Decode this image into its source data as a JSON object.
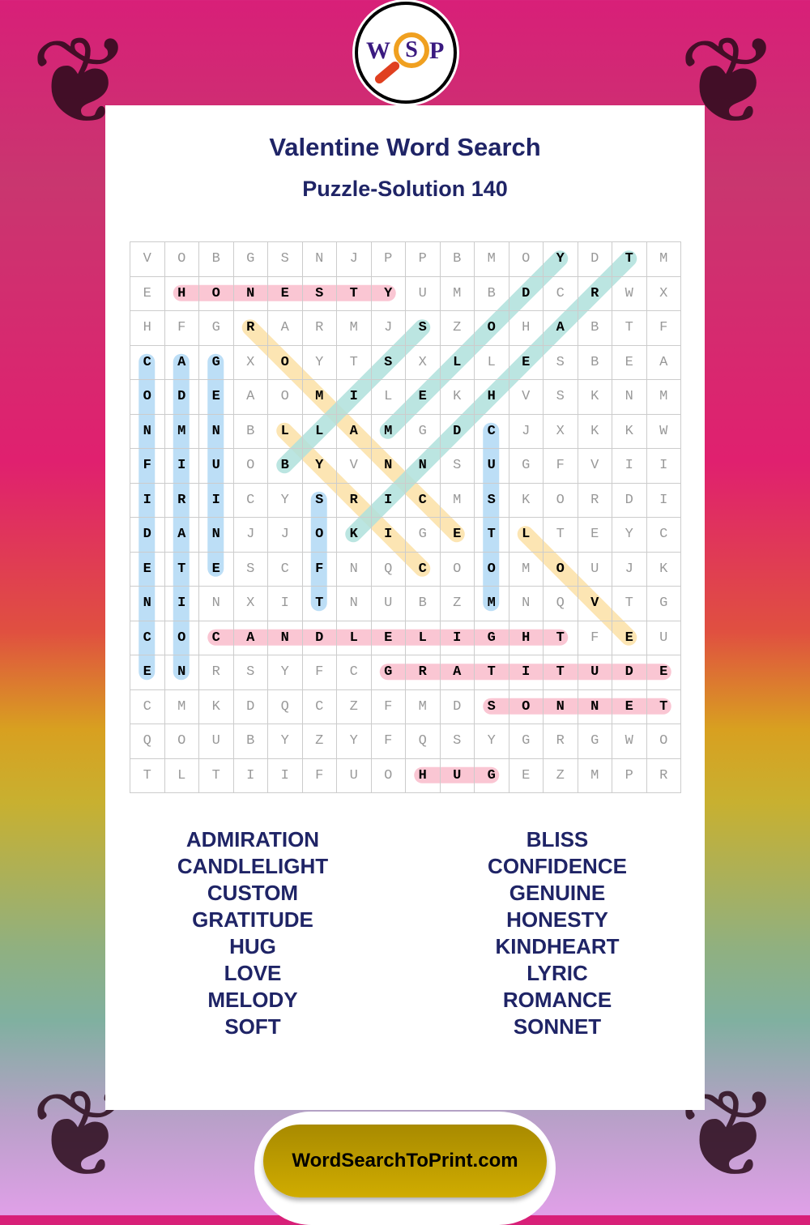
{
  "logo": {
    "letters": [
      "W",
      "S",
      "P"
    ]
  },
  "title": "Valentine Word Search",
  "subtitle": "Puzzle-Solution 140",
  "grid": [
    "VOBGSNJPPBMOYDTM",
    "EHONESTYUMBDCRWX",
    "HFGRARMJSZOHABTF",
    "CAGXOYTSXLLESBEA",
    "ODEAOMILEKHVSKNM",
    "NMNBLLAMGDCJXKKW",
    "FIUOBYVNNSUGFVII",
    "IRICYSRICMSKORDI",
    "DANJJOKIGETLTEYC",
    "ETESCFNQCOOMOUJK",
    "NINXITNUBZMNQVTG",
    "COCANDLELIGHTFEU",
    "ENRSYFCGRATITUDE",
    "CMKDQCZFMDSONNET",
    "QOUBYZYFQSYGRGWO",
    "TLTIIFUOHUGEZMPR"
  ],
  "solutions": [
    {
      "word": "HONESTY",
      "from": [
        1,
        1
      ],
      "to": [
        1,
        7
      ],
      "color": "pink"
    },
    {
      "word": "CANDLELIGHT",
      "from": [
        11,
        2
      ],
      "to": [
        11,
        12
      ],
      "color": "pink"
    },
    {
      "word": "GRATITUDE",
      "from": [
        12,
        7
      ],
      "to": [
        12,
        15
      ],
      "color": "pink"
    },
    {
      "word": "SONNET",
      "from": [
        13,
        10
      ],
      "to": [
        13,
        15
      ],
      "color": "pink"
    },
    {
      "word": "HUG",
      "from": [
        15,
        8
      ],
      "to": [
        15,
        10
      ],
      "color": "pink"
    },
    {
      "word": "CONFIDENCE",
      "from": [
        3,
        0
      ],
      "to": [
        12,
        0
      ],
      "color": "blue"
    },
    {
      "word": "ADMIRATION",
      "from": [
        3,
        1
      ],
      "to": [
        12,
        1
      ],
      "color": "blue"
    },
    {
      "word": "GENUINE",
      "from": [
        3,
        2
      ],
      "to": [
        9,
        2
      ],
      "color": "blue"
    },
    {
      "word": "SOFT",
      "from": [
        7,
        5
      ],
      "to": [
        10,
        5
      ],
      "color": "blue"
    },
    {
      "word": "CUSTOM",
      "from": [
        5,
        10
      ],
      "to": [
        10,
        10
      ],
      "color": "blue"
    },
    {
      "word": "ROMANCE",
      "from": [
        2,
        3
      ],
      "to": [
        8,
        9
      ],
      "color": "yellow"
    },
    {
      "word": "LYRIC",
      "from": [
        5,
        4
      ],
      "to": [
        9,
        8
      ],
      "color": "yellow"
    },
    {
      "word": "LOVE",
      "from": [
        8,
        11
      ],
      "to": [
        11,
        14
      ],
      "color": "yellow"
    },
    {
      "word": "MELODY",
      "from": [
        5,
        7
      ],
      "to": [
        0,
        12
      ],
      "color": "teal"
    },
    {
      "word": "KINDHEART",
      "from": [
        8,
        6
      ],
      "to": [
        0,
        14
      ],
      "color": "teal"
    },
    {
      "word": "BLISS",
      "from": [
        6,
        4
      ],
      "to": [
        2,
        8
      ],
      "color": "teal"
    }
  ],
  "colors": {
    "pink": "#f9bccb",
    "blue": "#b0d8f4",
    "yellow": "#fbe1a6",
    "teal": "#afe0dc",
    "title": "#1f2466",
    "button": "#c4a000"
  },
  "word_list_left": [
    "ADMIRATION",
    "CANDLELIGHT",
    "CUSTOM",
    "GRATITUDE",
    "HUG",
    "LOVE",
    "MELODY",
    "SOFT"
  ],
  "word_list_right": [
    "BLISS",
    "CONFIDENCE",
    "GENUINE",
    "HONESTY",
    "KINDHEART",
    "LYRIC",
    "ROMANCE",
    "SONNET"
  ],
  "footer_button": "WordSearchToPrint.com"
}
